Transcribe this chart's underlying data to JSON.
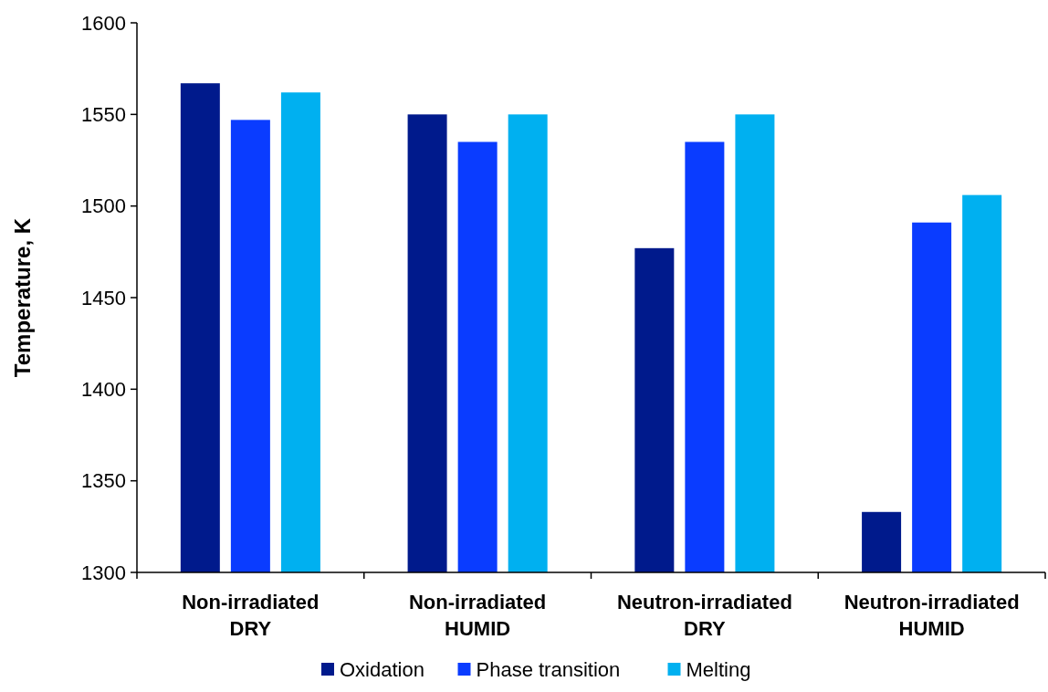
{
  "chart_data": {
    "type": "bar",
    "ylabel": "Temperature, K",
    "categories": [
      "Non-irradiated\nDRY",
      "Non-irradiated\nHUMID",
      "Neutron-irradiated\nDRY",
      "Neutron-irradiated\nHUMID"
    ],
    "series": [
      {
        "name": "Oxidation",
        "color": "#001a8c",
        "values": [
          1567,
          1550,
          1477,
          1333
        ]
      },
      {
        "name": "Phase transition",
        "color": "#0a3cff",
        "values": [
          1547,
          1535,
          1535,
          1491
        ]
      },
      {
        "name": "Melting",
        "color": "#00b0f0",
        "values": [
          1562,
          1550,
          1550,
          1506
        ]
      }
    ],
    "ylim": [
      1300,
      1600
    ],
    "yticks": [
      1300,
      1350,
      1400,
      1450,
      1500,
      1550,
      1600
    ],
    "grid": false,
    "legend": "bottom"
  }
}
